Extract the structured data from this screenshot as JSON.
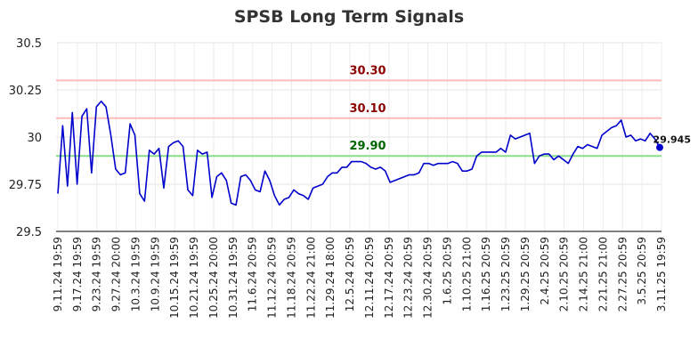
{
  "chart_data": {
    "type": "line",
    "title": "SPSB Long Term Signals",
    "xlabel": "",
    "ylabel": "",
    "ylim": [
      29.5,
      30.5
    ],
    "yticks": [
      29.5,
      29.75,
      30,
      30.25,
      30.5
    ],
    "ytick_labels": [
      "29.5",
      "29.75",
      "30",
      "30.25",
      "30.5"
    ],
    "grid": true,
    "xtick_labels": [
      "9.11.24 19:59",
      "9.17.24 19:59",
      "9.23.24 19:59",
      "9.27.24 20:00",
      "10.3.24 19:59",
      "10.9.24 19:59",
      "10.15.24 19:59",
      "10.21.24 19:59",
      "10.25.24 20:00",
      "10.31.24 19:59",
      "11.6.24 20:59",
      "11.12.24 20:59",
      "11.18.24 20:59",
      "11.22.24 21:00",
      "11.29.24 18:00",
      "12.5.24 20:59",
      "12.11.24 20:59",
      "12.17.24 20:59",
      "12.23.24 20:59",
      "12.30.24 20:59",
      "1.6.25 20:59",
      "1.10.25 21:00",
      "1.16.25 20:59",
      "1.23.25 20:59",
      "1.29.25 20:59",
      "2.4.25 20:59",
      "2.10.25 20:59",
      "2.14.25 21:00",
      "2.21.25 21:00",
      "2.27.25 20:59",
      "3.5.25 20:59",
      "3.11.25 19:59"
    ],
    "series": [
      {
        "color": "#0000cc",
        "values": [
          29.7,
          30.06,
          29.74,
          30.13,
          29.75,
          30.11,
          30.15,
          29.81,
          30.16,
          30.19,
          30.16,
          30.01,
          29.83,
          29.8,
          29.81,
          30.07,
          30.01,
          29.7,
          29.66,
          29.93,
          29.91,
          29.94,
          29.73,
          29.95,
          29.97,
          29.98,
          29.95,
          29.72,
          29.69,
          29.93,
          29.91,
          29.92,
          29.68,
          29.79,
          29.81,
          29.77,
          29.65,
          29.64,
          29.79,
          29.8,
          29.77,
          29.72,
          29.71,
          29.82,
          29.77,
          29.69,
          29.64,
          29.67,
          29.68,
          29.72,
          29.7,
          29.69,
          29.67,
          29.73,
          29.74,
          29.75,
          29.79,
          29.81,
          29.81,
          29.84,
          29.84,
          29.87,
          29.87,
          29.87,
          29.86,
          29.84,
          29.83,
          29.84,
          29.82,
          29.76,
          29.77,
          29.78,
          29.79,
          29.8,
          29.8,
          29.81,
          29.86,
          29.86,
          29.85,
          29.86,
          29.86,
          29.86,
          29.87,
          29.86,
          29.82,
          29.82,
          29.83,
          29.9,
          29.92,
          29.92,
          29.92,
          29.92,
          29.94,
          29.92,
          30.01,
          29.99,
          30.0,
          30.01,
          30.02,
          29.86,
          29.9,
          29.91,
          29.91,
          29.88,
          29.9,
          29.88,
          29.86,
          29.91,
          29.95,
          29.94,
          29.96,
          29.95,
          29.94,
          30.01,
          30.03,
          30.05,
          30.06,
          30.09,
          30.0,
          30.01,
          29.98,
          29.99,
          29.98,
          30.02,
          29.99,
          29.945
        ]
      }
    ],
    "reference_lines": [
      {
        "value": 30.3,
        "label": "30.30",
        "line_color": "#ffbbbb",
        "label_color": "#8b0000"
      },
      {
        "value": 30.1,
        "label": "30.10",
        "line_color": "#ffbbbb",
        "label_color": "#8b0000"
      },
      {
        "value": 29.9,
        "label": "29.90",
        "line_color": "#88dd88",
        "label_color": "#006400"
      }
    ],
    "last_point": {
      "value": 29.945,
      "label": "29.945",
      "color": "#0000cc"
    }
  }
}
